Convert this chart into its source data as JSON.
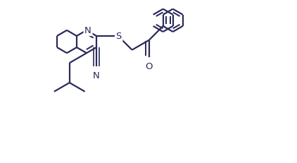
{
  "background_color": "#ffffff",
  "line_color": "#2a2a5a",
  "line_width": 1.6,
  "figsize": [
    4.22,
    2.32
  ],
  "dpi": 100,
  "xlim": [
    0,
    4.22
  ],
  "ylim": [
    0,
    2.32
  ]
}
